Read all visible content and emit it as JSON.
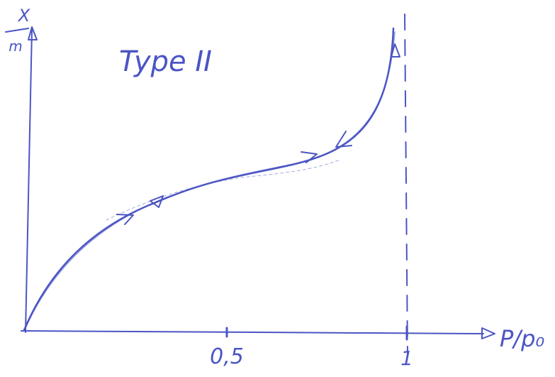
{
  "y_axis_label": {
    "numerator": "X",
    "denominator": "m"
  },
  "title": "Type II",
  "x_axis_label": "P/p₀",
  "x_ticks": [
    "0,5",
    "1"
  ]
}
